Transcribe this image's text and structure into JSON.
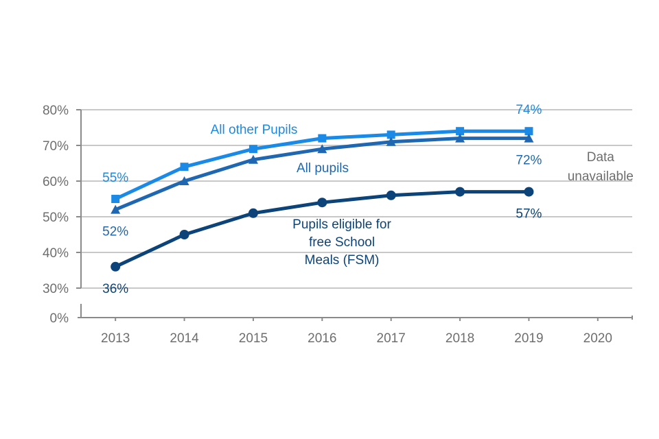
{
  "chart_data": {
    "type": "line",
    "title": "",
    "xlabel": "",
    "ylabel": "",
    "categories": [
      "2013",
      "2014",
      "2015",
      "2016",
      "2017",
      "2018",
      "2019",
      "2020"
    ],
    "yticks": [
      {
        "value": 0,
        "label": "0%"
      },
      {
        "value": 30,
        "label": "30%"
      },
      {
        "value": 40,
        "label": "40%"
      },
      {
        "value": 50,
        "label": "50%"
      },
      {
        "value": 60,
        "label": "60%"
      },
      {
        "value": 70,
        "label": "70%"
      },
      {
        "value": 80,
        "label": "80%"
      }
    ],
    "ylim": [
      0,
      80
    ],
    "y_axis_break": [
      0,
      30
    ],
    "grid": true,
    "legend": "none (inline series labels)",
    "series": [
      {
        "name": "All other Pupils",
        "label": "All other Pupils",
        "color": "#1a8ae6",
        "marker": "square",
        "values": [
          55,
          64,
          69,
          72,
          73,
          74,
          74,
          null
        ],
        "data_labels": [
          {
            "category": "2013",
            "text": "55%",
            "position": "above"
          },
          {
            "category": "2019",
            "text": "74%",
            "position": "above"
          }
        ]
      },
      {
        "name": "All pupils",
        "label": "All pupils",
        "color": "#1f67b0",
        "marker": "triangle",
        "values": [
          52,
          60,
          66,
          69,
          71,
          72,
          72,
          null
        ],
        "data_labels": [
          {
            "category": "2013",
            "text": "52%",
            "position": "below"
          },
          {
            "category": "2019",
            "text": "72%",
            "position": "below"
          }
        ]
      },
      {
        "name": "Pupils eligible for free School Meals (FSM)",
        "label_lines": [
          "Pupils eligible for",
          "free School",
          "Meals (FSM)"
        ],
        "color": "#0c4378",
        "marker": "circle",
        "values": [
          36,
          45,
          51,
          54,
          56,
          57,
          57,
          null
        ],
        "data_labels": [
          {
            "category": "2013",
            "text": "36%",
            "position": "below"
          },
          {
            "category": "2019",
            "text": "57%",
            "position": "below"
          }
        ]
      }
    ],
    "annotations": [
      {
        "category": "2020",
        "lines": [
          "Data",
          "unavailable"
        ],
        "color": "#6e6e6e"
      }
    ]
  }
}
